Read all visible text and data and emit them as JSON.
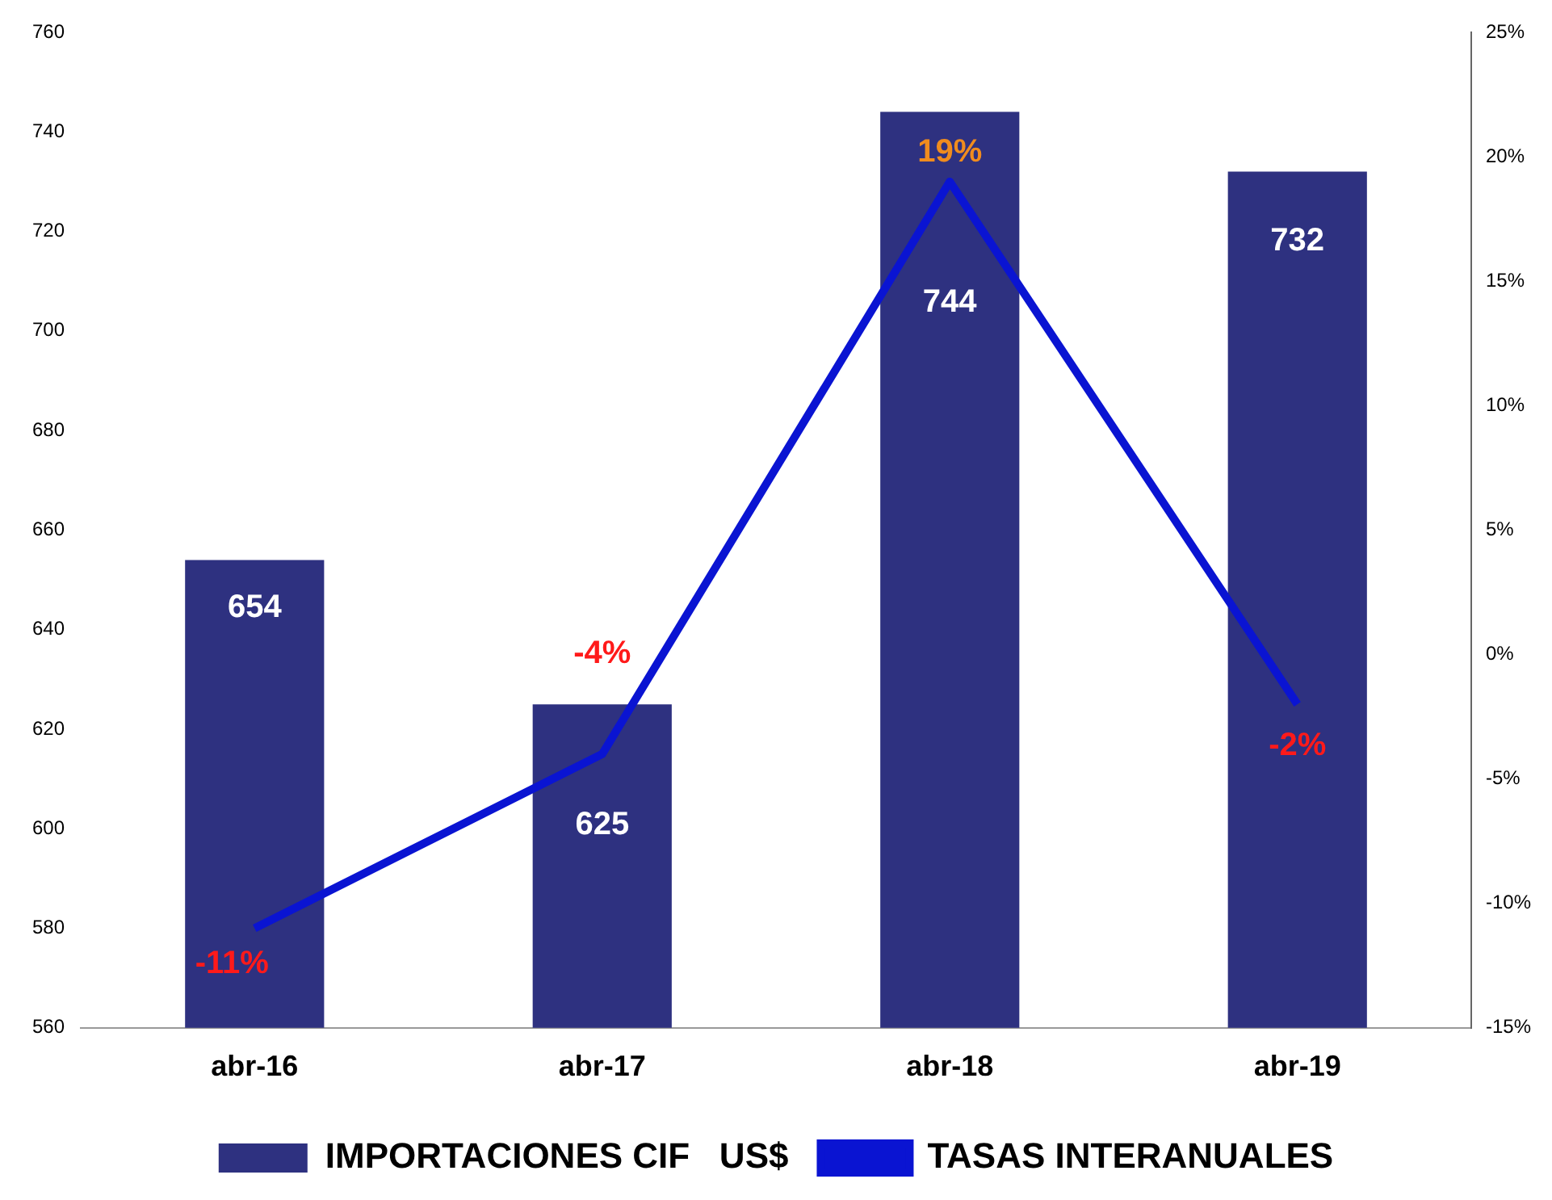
{
  "chart_data": {
    "type": "bar",
    "categories": [
      "abr-16",
      "abr-17",
      "abr-18",
      "abr-19"
    ],
    "series": [
      {
        "name": "IMPORTACIONES CIF   US$",
        "color": "#2e3180",
        "values": [
          654,
          625,
          744,
          732
        ],
        "value_labels": [
          "654",
          "625",
          "744",
          "732"
        ]
      },
      {
        "name": "TASAS INTERANUALES",
        "type": "line",
        "axis": "y2",
        "color": "#0a14d2",
        "values": [
          -11,
          -4,
          19,
          -2
        ],
        "value_labels": [
          "-11%",
          "-4%",
          "19%",
          "-2%"
        ]
      }
    ],
    "ylim": [
      560,
      760
    ],
    "yticks": [
      560,
      580,
      600,
      620,
      640,
      660,
      680,
      700,
      720,
      740,
      760
    ],
    "y2lim": [
      -15,
      25
    ],
    "y2ticks": [
      {
        "value": -15,
        "label": "-15%"
      },
      {
        "value": -10,
        "label": "-10%"
      },
      {
        "value": -5,
        "label": "-5%"
      },
      {
        "value": 0,
        "label": "0%"
      },
      {
        "value": 5,
        "label": "5%"
      },
      {
        "value": 10,
        "label": "10%"
      },
      {
        "value": 15,
        "label": "15%"
      },
      {
        "value": 20,
        "label": "20%"
      },
      {
        "value": 25,
        "label": "25%"
      }
    ],
    "grid": false,
    "legend": "bottom",
    "marker": "none"
  }
}
